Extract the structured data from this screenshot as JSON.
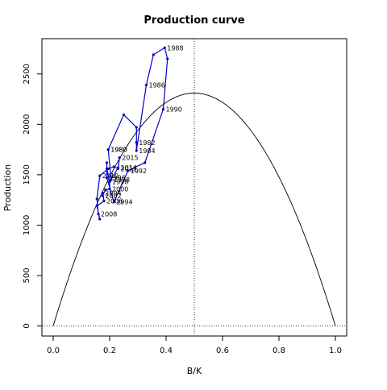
{
  "chart_data": {
    "type": "line",
    "title": "Production curve",
    "xlabel": "B/K",
    "ylabel": "Production",
    "xlim": [
      -0.04,
      1.04
    ],
    "ylim": [
      -100,
      2850
    ],
    "x_ticks": [
      0.0,
      0.2,
      0.4,
      0.6,
      0.8,
      1.0
    ],
    "x_tick_labels": [
      "0.0",
      "0.2",
      "0.4",
      "0.6",
      "0.8",
      "1.0"
    ],
    "y_ticks": [
      0,
      500,
      1000,
      1500,
      2000,
      2500
    ],
    "y_tick_labels": [
      "0",
      "500",
      "1000",
      "1500",
      "2000",
      "2500"
    ],
    "grid": false,
    "reference_lines": {
      "vertical_dotted_x": 0.5,
      "horizontal_dotted_y": 0
    },
    "production_curve": {
      "description": "parabola",
      "x_range": [
        0,
        1
      ],
      "peak_x": 0.5,
      "peak_y": 2310
    },
    "series": [
      {
        "color": "#0000cc",
        "points": [
          {
            "x": 0.195,
            "y": 1750,
            "label": "1980"
          },
          {
            "x": 0.25,
            "y": 2095,
            "label": ""
          },
          {
            "x": 0.295,
            "y": 1970,
            "label": ""
          },
          {
            "x": 0.295,
            "y": 1820,
            "label": "1982"
          },
          {
            "x": 0.295,
            "y": 1740,
            "label": "1984"
          },
          {
            "x": 0.33,
            "y": 2390,
            "label": "1986"
          },
          {
            "x": 0.355,
            "y": 2690,
            "label": ""
          },
          {
            "x": 0.395,
            "y": 2760,
            "label": "1988"
          },
          {
            "x": 0.405,
            "y": 2650,
            "label": ""
          },
          {
            "x": 0.39,
            "y": 2150,
            "label": "1990"
          },
          {
            "x": 0.325,
            "y": 1620,
            "label": ""
          },
          {
            "x": 0.265,
            "y": 1540,
            "label": "1992"
          },
          {
            "x": 0.215,
            "y": 1230,
            "label": "1994"
          },
          {
            "x": 0.19,
            "y": 1470,
            "label": "1996"
          },
          {
            "x": 0.19,
            "y": 1620,
            "label": ""
          },
          {
            "x": 0.19,
            "y": 1560,
            "label": ""
          },
          {
            "x": 0.2,
            "y": 1430,
            "label": "1998"
          },
          {
            "x": 0.2,
            "y": 1360,
            "label": "2000"
          },
          {
            "x": 0.185,
            "y": 1350,
            "label": ""
          },
          {
            "x": 0.175,
            "y": 1290,
            "label": "2002"
          },
          {
            "x": 0.175,
            "y": 1320,
            "label": "2004"
          },
          {
            "x": 0.18,
            "y": 1240,
            "label": "2006"
          },
          {
            "x": 0.155,
            "y": 1190,
            "label": ""
          },
          {
            "x": 0.165,
            "y": 1060,
            "label": ""
          },
          {
            "x": 0.16,
            "y": 1110,
            "label": "2008"
          },
          {
            "x": 0.155,
            "y": 1260,
            "label": ""
          },
          {
            "x": 0.165,
            "y": 1490,
            "label": "2010"
          },
          {
            "x": 0.195,
            "y": 1560,
            "label": ""
          },
          {
            "x": 0.215,
            "y": 1580,
            "label": ""
          },
          {
            "x": 0.23,
            "y": 1560,
            "label": "2012"
          },
          {
            "x": 0.235,
            "y": 1670,
            "label": "2015"
          },
          {
            "x": 0.23,
            "y": 1570,
            "label": "2014"
          },
          {
            "x": 0.205,
            "y": 1450,
            "label": "1998"
          },
          {
            "x": 0.195,
            "y": 1750,
            "label": "1980"
          }
        ]
      }
    ]
  }
}
